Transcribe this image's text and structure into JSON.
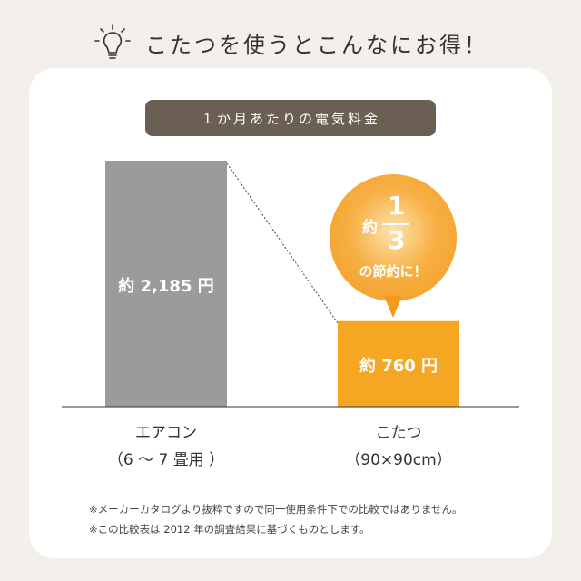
{
  "header": {
    "title": "こたつを使うとこんなにお得！",
    "icon": "lightbulb-icon"
  },
  "pill": {
    "label": "１か月あたりの電気料金"
  },
  "colors": {
    "background": "#f3efea",
    "pill": "#6b5e52",
    "aircon_bar": "#9b9b9b",
    "kotatsu_bar": "#f5a623"
  },
  "chart_data": {
    "type": "bar",
    "title": "１か月あたりの電気料金",
    "categories": [
      "エアコン（6 〜 7 畳用 ）",
      "こたつ（90×90cm）"
    ],
    "values": [
      2185,
      760
    ],
    "unit": "円",
    "data_labels": [
      "約 2,185 円",
      "約 760 円"
    ],
    "grid": false
  },
  "bars": [
    {
      "label": "約 2,185 円",
      "cat_line1": "エアコン",
      "cat_line2": "（6 〜 7 畳用 ）"
    },
    {
      "label": "約 760 円",
      "cat_line1": "こたつ",
      "cat_line2": "（90×90cm）"
    }
  ],
  "bubble": {
    "prefix": "約",
    "numerator": "1",
    "denominator": "3",
    "suffix": "の節約に！"
  },
  "notes": [
    "※メーカーカタログより抜粋ですので同一使用条件下での比較ではありません。",
    "※この比較表は 2012 年の調査結果に基づくものとします。"
  ]
}
